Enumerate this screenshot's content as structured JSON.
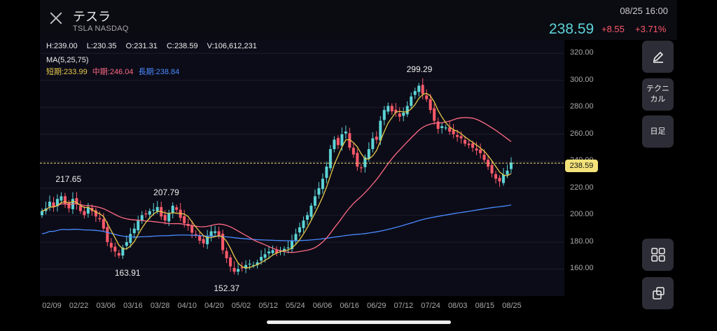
{
  "header": {
    "title": "テスラ",
    "subtitle": "TSLA NASDAQ",
    "timestamp": "08/25 16:00",
    "price": "238.59",
    "change": "+8.55",
    "change_pct": "+3.71%"
  },
  "ohlc": {
    "high": "H:239.00",
    "low": "L:230.35",
    "open": "O:231.31",
    "close": "C:238.59",
    "volume": "V:106,612,231"
  },
  "ma": {
    "label": "MA(5,25,75)",
    "short": "短期:233.99",
    "mid": "中期:246.04",
    "long": "長期:238.84"
  },
  "side_buttons": {
    "technical": "テクニ カル",
    "candle": "日足"
  },
  "colors": {
    "up": "#5cd4d6",
    "down": "#ff5a6a",
    "ma_short": "#e6c84a",
    "ma_mid": "#ff6a84",
    "ma_long": "#4a8aff",
    "current_line": "#f3e27a"
  },
  "chart_data": {
    "type": "candlestick",
    "ylim": [
      140,
      330
    ],
    "y_ticks": [
      "320.00",
      "300.00",
      "280.00",
      "260.00",
      "240.00",
      "220.00",
      "200.00",
      "180.00",
      "160.00"
    ],
    "x_ticks": [
      "02/09",
      "02/22",
      "03/06",
      "03/16",
      "03/28",
      "04/10",
      "04/20",
      "05/02",
      "05/12",
      "05/24",
      "06/06",
      "06/16",
      "06/29",
      "07/12",
      "07/24",
      "08/03",
      "08/15",
      "08/25"
    ],
    "current_price": "238.59",
    "annotations": [
      {
        "label": "217.65",
        "value": 217.65,
        "date": "02/17"
      },
      {
        "label": "163.91",
        "value": 163.91,
        "date": "03/14"
      },
      {
        "label": "207.79",
        "value": 207.79,
        "date": "03/31"
      },
      {
        "label": "152.37",
        "value": 152.37,
        "date": "04/26"
      },
      {
        "label": "299.29",
        "value": 299.29,
        "date": "07/19"
      }
    ],
    "closes": [
      203,
      205,
      210,
      206,
      212,
      214,
      208,
      205,
      212,
      208,
      203,
      200,
      206,
      203,
      199,
      197,
      190,
      180,
      176,
      173,
      170,
      176,
      180,
      186,
      190,
      196,
      200,
      201,
      203,
      204,
      206,
      199,
      196,
      201,
      207,
      204,
      198,
      194,
      192,
      187,
      185,
      181,
      179,
      184,
      188,
      188,
      185,
      174,
      168,
      162,
      158,
      160,
      161,
      163,
      164,
      163,
      165,
      169,
      171,
      173,
      174,
      172,
      174,
      175,
      176,
      181,
      186,
      191,
      196,
      200,
      207,
      214,
      220,
      227,
      236,
      249,
      256,
      252,
      260,
      262,
      250,
      245,
      236,
      235,
      243,
      249,
      257,
      256,
      270,
      278,
      281,
      277,
      276,
      273,
      276,
      281,
      288,
      292,
      296,
      290,
      286,
      278,
      270,
      264,
      266,
      265,
      262,
      260,
      258,
      257,
      253,
      252,
      250,
      248,
      246,
      241,
      236,
      231,
      227,
      225,
      230,
      233,
      239
    ]
  }
}
